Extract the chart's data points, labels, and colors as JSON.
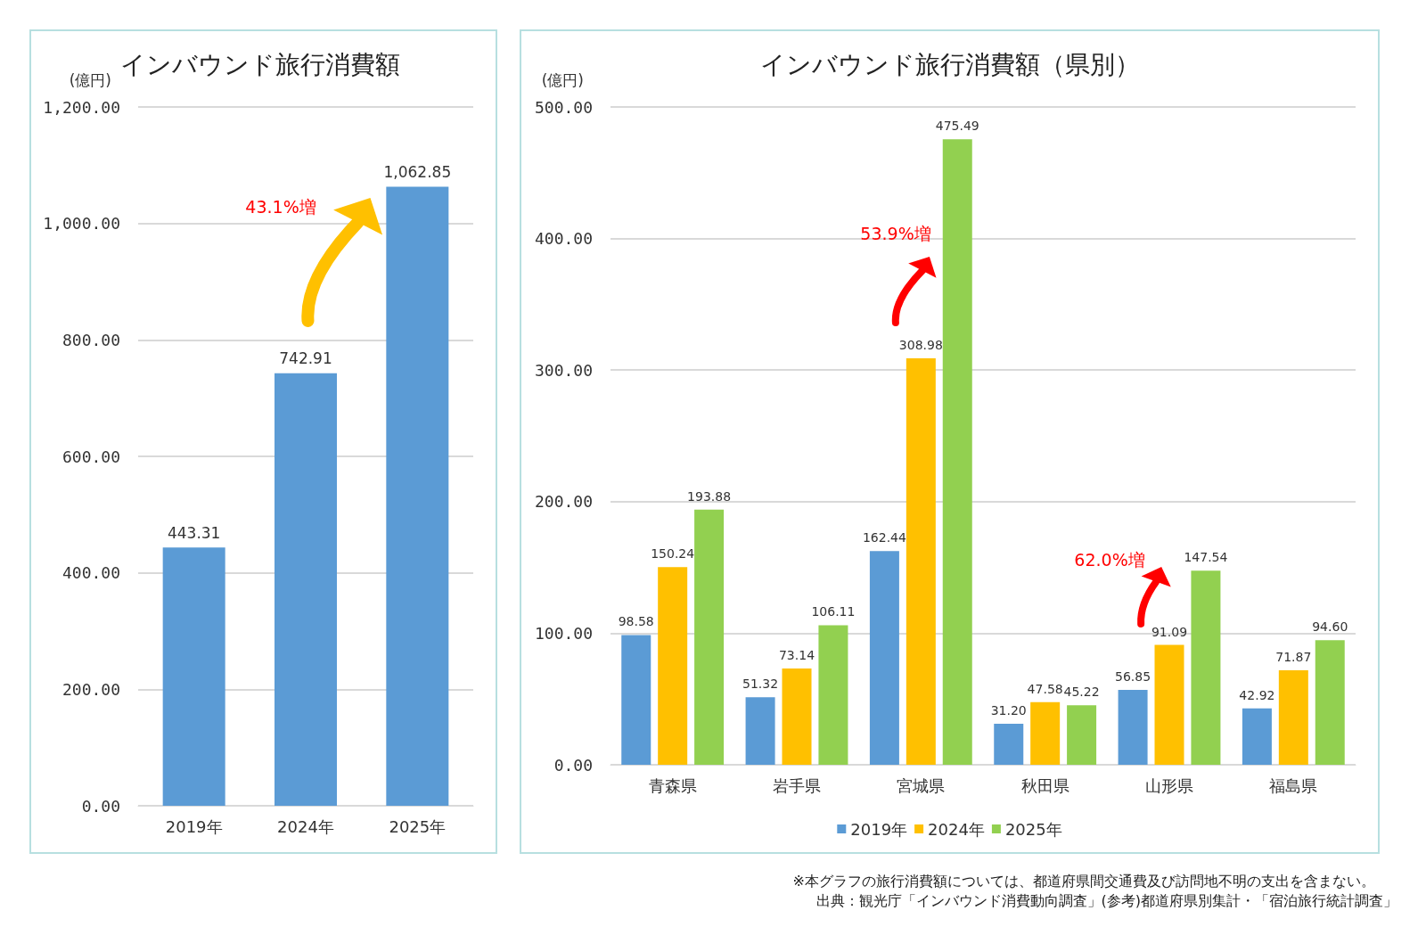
{
  "chart_data": [
    {
      "type": "bar",
      "title": "インバウンド旅行消費額",
      "ylabel": "(億円)",
      "categories": [
        "2019年",
        "2024年",
        "2025年"
      ],
      "series": [
        {
          "color": "#5b9bd5",
          "values": [
            443.31,
            742.91,
            1062.85
          ],
          "value_labels": [
            "443.31",
            "742.91",
            "1,062.85"
          ]
        }
      ],
      "ylim": [
        0,
        1200
      ],
      "yticks": [
        {
          "value": 0,
          "label": "0.00"
        },
        {
          "value": 200,
          "label": "200.00"
        },
        {
          "value": 400,
          "label": "400.00"
        },
        {
          "value": 600,
          "label": "600.00"
        },
        {
          "value": 800,
          "label": "800.00"
        },
        {
          "value": 1000,
          "label": "1,000.00"
        },
        {
          "value": 1200,
          "label": "1,200.00"
        }
      ],
      "grid": "y",
      "legend": false,
      "annotations": [
        "43.1%増"
      ]
    },
    {
      "type": "bar",
      "title": "インバウンド旅行消費額（県別）",
      "ylabel": "(億円)",
      "categories": [
        "青森県",
        "岩手県",
        "宮城県",
        "秋田県",
        "山形県",
        "福島県"
      ],
      "series": [
        {
          "name": "2019年",
          "color": "#5b9bd5",
          "values": [
            98.58,
            51.32,
            162.44,
            31.2,
            56.85,
            42.92
          ],
          "value_labels": [
            "98.58",
            "51.32",
            "162.44",
            "31.20",
            "56.85",
            "42.92"
          ]
        },
        {
          "name": "2024年",
          "color": "#ffc000",
          "values": [
            150.24,
            73.14,
            308.98,
            47.58,
            91.09,
            71.87
          ],
          "value_labels": [
            "150.24",
            "73.14",
            "308.98",
            "47.58",
            "91.09",
            "71.87"
          ]
        },
        {
          "name": "2025年",
          "color": "#92d050",
          "values": [
            193.88,
            106.11,
            475.49,
            45.22,
            147.54,
            94.6
          ],
          "value_labels": [
            "193.88",
            "106.11",
            "475.49",
            "45.22",
            "147.54",
            "94.60"
          ]
        }
      ],
      "ylim": [
        0,
        500
      ],
      "yticks": [
        {
          "value": 0,
          "label": "0.00"
        },
        {
          "value": 100,
          "label": "100.00"
        },
        {
          "value": 200,
          "label": "200.00"
        },
        {
          "value": 300,
          "label": "300.00"
        },
        {
          "value": 400,
          "label": "400.00"
        },
        {
          "value": 500,
          "label": "500.00"
        }
      ],
      "grid": "y",
      "legend": "bottom",
      "annotations": [
        "53.9%増",
        "62.0%増",
        "※本グラフの旅行消費額については、都道府県間交通費及び訪問地不明の支出を含まない。",
        "出典：観光庁「インバウンド消費動向調査」(参考)都道府県別集計・「宿泊旅行統計調査」"
      ]
    }
  ]
}
